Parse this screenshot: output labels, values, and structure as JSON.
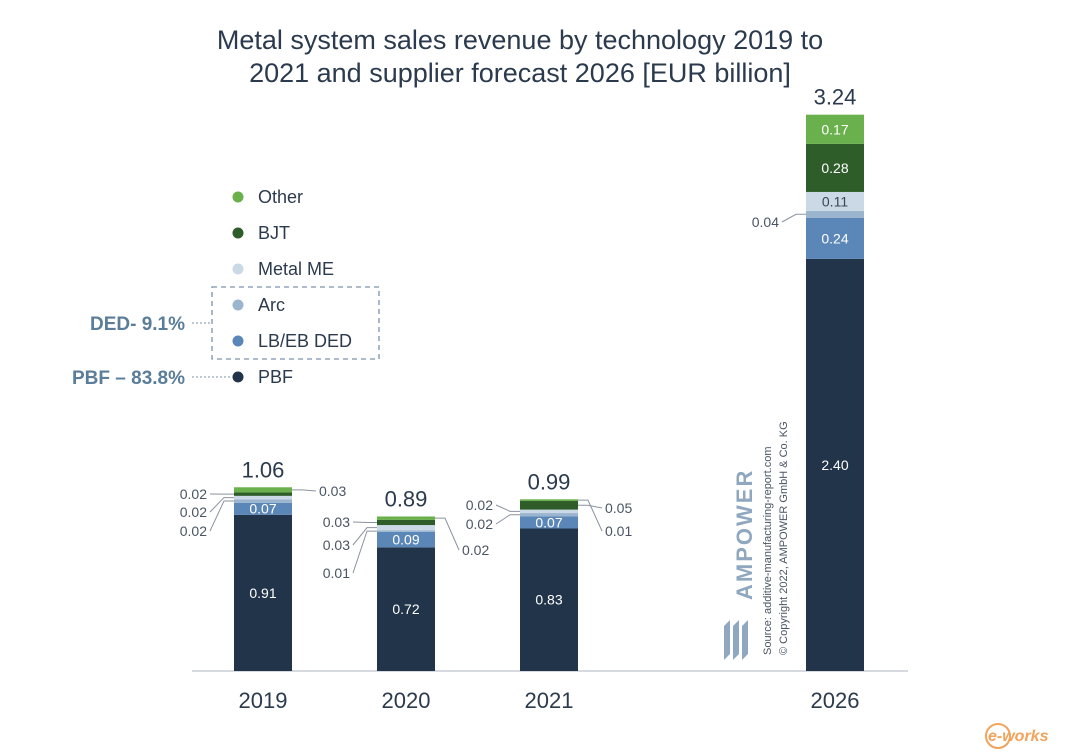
{
  "chart_data": {
    "type": "bar",
    "stacked": true,
    "title": "Metal system sales revenue by technology 2019 to 2021 and supplier forecast 2026 [EUR billion]",
    "categories": [
      "2019",
      "2020",
      "2021",
      "2026"
    ],
    "totals": [
      "1.06",
      "0.89",
      "0.99",
      "3.24"
    ],
    "ylim": [
      0,
      3.24
    ],
    "legend_position": "left",
    "series": [
      {
        "name": "PBF",
        "color": "#22344a",
        "values": [
          0.91,
          0.72,
          0.83,
          2.4
        ],
        "labels": [
          "0.91",
          "0.72",
          "0.83",
          "2.40"
        ]
      },
      {
        "name": "LB/EB DED",
        "color": "#5b87b8",
        "values": [
          0.07,
          0.09,
          0.07,
          0.24
        ],
        "labels": [
          "0.07",
          "0.09",
          "0.07",
          "0.24"
        ]
      },
      {
        "name": "Arc",
        "color": "#9bb5cf",
        "values": [
          0.02,
          0.01,
          0.02,
          0.04
        ],
        "labels": [
          "0.02",
          "0.01",
          "0.02",
          "0.04"
        ]
      },
      {
        "name": "Metal ME",
        "color": "#cbd9e7",
        "values": [
          0.02,
          0.03,
          0.02,
          0.11
        ],
        "labels": [
          "0.02",
          "0.03",
          "0.02",
          "0.11"
        ]
      },
      {
        "name": "BJT",
        "color": "#2f5d2a",
        "values": [
          0.02,
          0.03,
          0.05,
          0.28
        ],
        "labels": [
          "0.02",
          "0.03",
          "0.05",
          "0.28"
        ]
      },
      {
        "name": "Other",
        "color": "#6ab04c",
        "values": [
          0.03,
          0.02,
          0.01,
          0.17
        ],
        "labels": [
          "0.03",
          "0.02",
          "0.01",
          "0.17"
        ]
      }
    ],
    "legend_groups": [
      {
        "label": "DED- 9.1%",
        "members": [
          "Arc",
          "LB/EB DED"
        ]
      },
      {
        "label": "PBF – 83.8%",
        "members": [
          "PBF"
        ]
      }
    ]
  },
  "watermark": {
    "brand": "AMPOWER",
    "source_line": "Source: additive-manufacturing-report.com",
    "copyright_line": "© Copyright 2022, AMPOWER GmbH & Co. KG",
    "site_logo": "e-works"
  }
}
